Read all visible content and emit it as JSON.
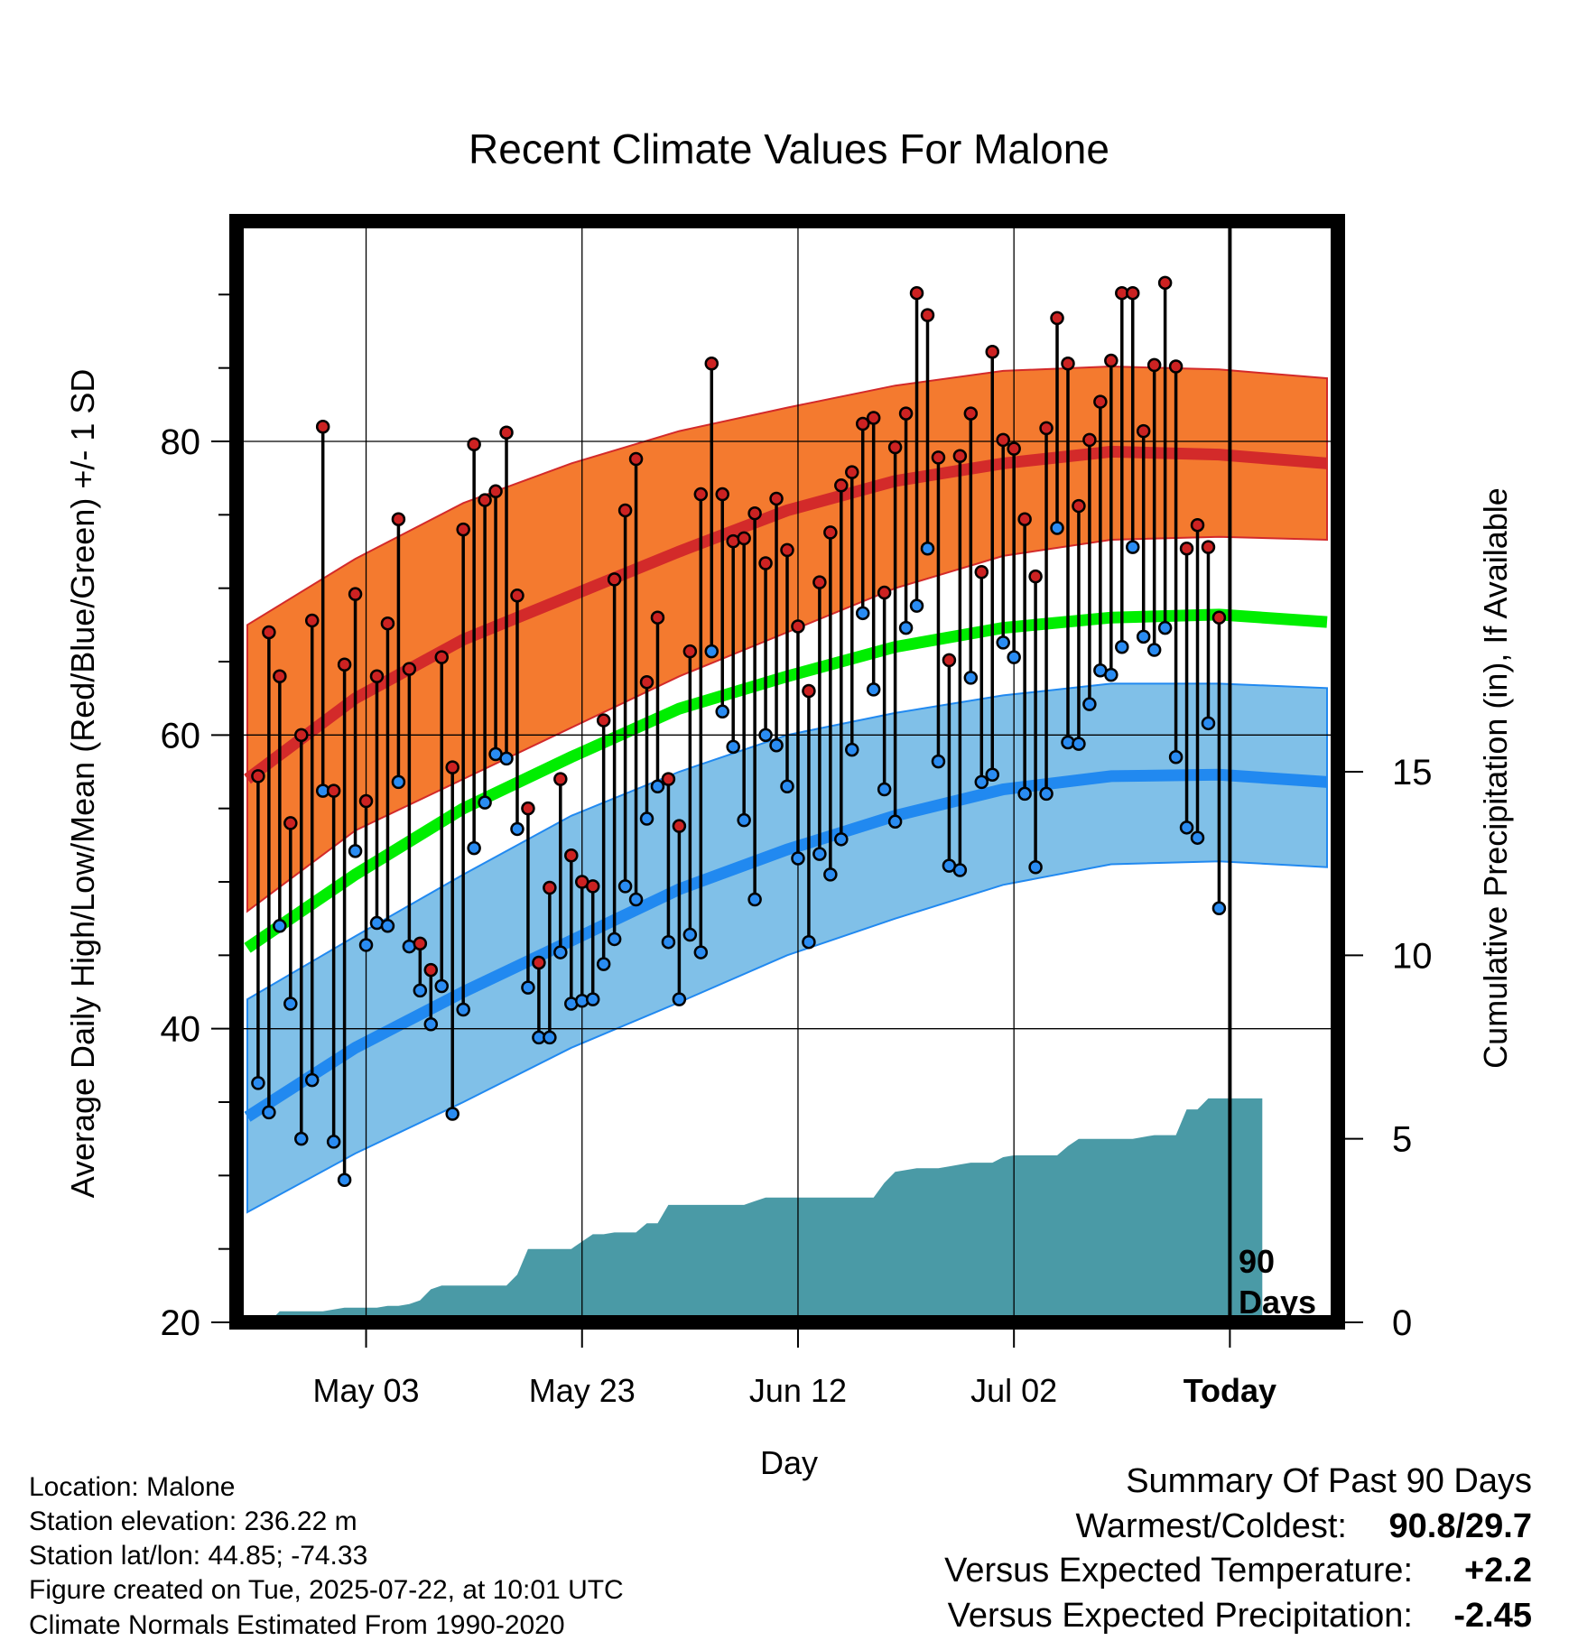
{
  "chart_data": {
    "type": "line",
    "title": "Recent Climate Values For Malone",
    "xlabel": "Day",
    "ylabel": "Average Daily High/Low/Mean (Red/Blue/Green) +/- 1 SD",
    "y2label": "Cumulative Precipitation (in), If Available",
    "ylim": [
      20,
      95
    ],
    "y2lim": [
      0,
      30
    ],
    "xlim": [
      -2,
      100
    ],
    "yticks": [
      "20",
      "40",
      "60",
      "80"
    ],
    "y2ticks": [
      "0",
      "5",
      "10",
      "15"
    ],
    "xticks": [
      {
        "day": 10,
        "label": "May 03"
      },
      {
        "day": 30,
        "label": "May 23"
      },
      {
        "day": 50,
        "label": "Jun 12"
      },
      {
        "day": 70,
        "label": "Jul 02"
      },
      {
        "day": 90,
        "label": "Today"
      }
    ],
    "today_marker": {
      "day": 90,
      "label_line1": "90",
      "label_line2": "Days"
    },
    "normals": {
      "x": [
        -1,
        9,
        19,
        29,
        39,
        49,
        59,
        69,
        79,
        89,
        99
      ],
      "high_mean": [
        57,
        62.5,
        66.5,
        69.5,
        72.5,
        75.3,
        77.3,
        78.5,
        79.3,
        79.1,
        78.5
      ],
      "high_sd_upper": [
        67.5,
        72,
        75.8,
        78.5,
        80.7,
        82.3,
        83.8,
        84.8,
        85.1,
        84.9,
        84.3
      ],
      "high_sd_lower": [
        48,
        53.5,
        57,
        60.5,
        64,
        67,
        70,
        72.2,
        73.3,
        73.5,
        73.3
      ],
      "mean": [
        45.5,
        50.5,
        55,
        58.5,
        61.8,
        64,
        66,
        67.3,
        68,
        68.2,
        67.7
      ],
      "low_mean": [
        34,
        38.7,
        42.5,
        46,
        49.5,
        52.2,
        54.5,
        56.3,
        57.2,
        57.3,
        56.8
      ],
      "low_sd_upper": [
        42,
        46.3,
        50.5,
        54.5,
        57.5,
        60,
        61.5,
        62.7,
        63.5,
        63.5,
        63.2
      ],
      "low_sd_lower": [
        27.5,
        31.5,
        35,
        38.7,
        41.8,
        45,
        47.5,
        49.8,
        51.2,
        51.4,
        51
      ]
    },
    "colors": {
      "high_band": "#f47a2f",
      "high_line": "#d32a2a",
      "mean_line": "#00ee00",
      "low_band": "#80c0e8",
      "low_line": "#2189f0",
      "precip": "#4a9aa6",
      "high_marker": "#cc2222",
      "low_marker": "#2a8cf2"
    },
    "series": [
      {
        "name": "High",
        "values": [
          57.2,
          67.0,
          64.0,
          54.0,
          60.0,
          67.8,
          81.0,
          56.2,
          64.8,
          69.6,
          55.5,
          64.0,
          67.6,
          74.7,
          64.5,
          45.8,
          44.0,
          65.3,
          57.8,
          74.0,
          79.8,
          76.0,
          76.6,
          80.6,
          69.5,
          55.0,
          44.5,
          49.6,
          57.0,
          51.8,
          50.0,
          49.7,
          61.0,
          70.6,
          75.3,
          78.8,
          63.6,
          68.0,
          57.0,
          53.8,
          65.7,
          76.4,
          85.3,
          76.4,
          73.2,
          73.4,
          75.1,
          71.7,
          76.1,
          72.6,
          67.4,
          63.0,
          70.4,
          73.8,
          77.0,
          77.9,
          81.2,
          81.6,
          69.7,
          79.6,
          81.9,
          90.1,
          88.6,
          78.9,
          65.1,
          79.0,
          81.9,
          71.1,
          86.1,
          80.1,
          79.5,
          74.7,
          70.8,
          80.9,
          88.4,
          85.3,
          75.6,
          80.1,
          82.7,
          85.5,
          90.1,
          90.1,
          80.7,
          85.2,
          90.8,
          85.1,
          72.7,
          74.3,
          72.8,
          68.0
        ]
      },
      {
        "name": "Low",
        "values": [
          36.3,
          34.3,
          47.0,
          41.7,
          32.5,
          36.5,
          56.2,
          32.3,
          29.7,
          52.1,
          45.7,
          47.2,
          47.0,
          56.8,
          45.6,
          42.6,
          40.3,
          42.9,
          34.2,
          41.3,
          52.3,
          55.4,
          58.7,
          58.4,
          53.6,
          42.8,
          39.4,
          39.4,
          45.2,
          41.7,
          41.9,
          42.0,
          44.4,
          46.1,
          49.7,
          48.8,
          54.3,
          56.5,
          45.9,
          42.0,
          46.4,
          45.2,
          65.7,
          61.6,
          59.2,
          54.2,
          48.8,
          60.0,
          59.3,
          56.5,
          51.6,
          45.9,
          51.9,
          50.5,
          52.9,
          59.0,
          68.3,
          63.1,
          56.3,
          54.1,
          67.3,
          68.8,
          72.7,
          58.2,
          51.1,
          50.8,
          63.9,
          56.8,
          57.3,
          66.3,
          65.3,
          56.0,
          51.0,
          56.0,
          74.1,
          59.5,
          59.4,
          62.1,
          64.4,
          64.1,
          66.0,
          72.8,
          66.7,
          65.8,
          67.3,
          58.5,
          53.7,
          53.0,
          60.8,
          48.2
        ]
      }
    ],
    "precip": {
      "x": [
        -1,
        0,
        1,
        2,
        3,
        4,
        5,
        6,
        7,
        8,
        9,
        10,
        11,
        12,
        13,
        14,
        15,
        16,
        17,
        18,
        19,
        20,
        21,
        22,
        23,
        24,
        25,
        26,
        27,
        28,
        29,
        30,
        31,
        32,
        33,
        34,
        35,
        36,
        37,
        38,
        39,
        40,
        41,
        42,
        43,
        44,
        45,
        46,
        47,
        48,
        49,
        50,
        51,
        52,
        53,
        54,
        55,
        56,
        57,
        58,
        59,
        60,
        61,
        62,
        63,
        64,
        65,
        66,
        67,
        68,
        69,
        70,
        71,
        72,
        73,
        74,
        75,
        76,
        77,
        78,
        79,
        80,
        81,
        82,
        83,
        84,
        85,
        86,
        87,
        88,
        89,
        90,
        91,
        92,
        93
      ],
      "values": [
        0,
        0,
        0,
        0.3,
        0.3,
        0.3,
        0.3,
        0.3,
        0.35,
        0.4,
        0.4,
        0.4,
        0.4,
        0.45,
        0.45,
        0.5,
        0.6,
        0.9,
        1.0,
        1.0,
        1.0,
        1.0,
        1.0,
        1.0,
        1.0,
        1.3,
        2.0,
        2.0,
        2.0,
        2.0,
        2.0,
        2.2,
        2.4,
        2.4,
        2.45,
        2.45,
        2.45,
        2.7,
        2.7,
        3.2,
        3.2,
        3.2,
        3.2,
        3.2,
        3.2,
        3.2,
        3.2,
        3.3,
        3.4,
        3.4,
        3.4,
        3.4,
        3.4,
        3.4,
        3.4,
        3.4,
        3.4,
        3.4,
        3.4,
        3.8,
        4.1,
        4.15,
        4.2,
        4.2,
        4.2,
        4.25,
        4.3,
        4.35,
        4.35,
        4.35,
        4.5,
        4.55,
        4.55,
        4.55,
        4.55,
        4.55,
        4.8,
        5.0,
        5.0,
        5.0,
        5.0,
        5.0,
        5.0,
        5.05,
        5.1,
        5.1,
        5.1,
        5.8,
        5.8,
        6.1,
        6.1,
        6.1,
        6.1,
        6.1,
        6.1
      ]
    }
  },
  "info": {
    "location": "Location: Malone",
    "elevation": "Station elevation: 236.22 m",
    "latlon": "Station lat/lon: 44.85; -74.33",
    "created": "Figure created on Tue, 2025-07-22, at 10:01 UTC",
    "normals": "Climate Normals Estimated From 1990-2020"
  },
  "summary": {
    "heading": "Summary Of Past 90 Days",
    "warm_cold_label": "Warmest/Coldest:",
    "warm_cold_value": "90.8/29.7",
    "temp_label": "Versus Expected Temperature:",
    "temp_value": "+2.2",
    "temp_color": "#cc2222",
    "precip_label": "Versus Expected Precipitation:",
    "precip_value": "-2.45",
    "precip_color": "#a0522d"
  }
}
